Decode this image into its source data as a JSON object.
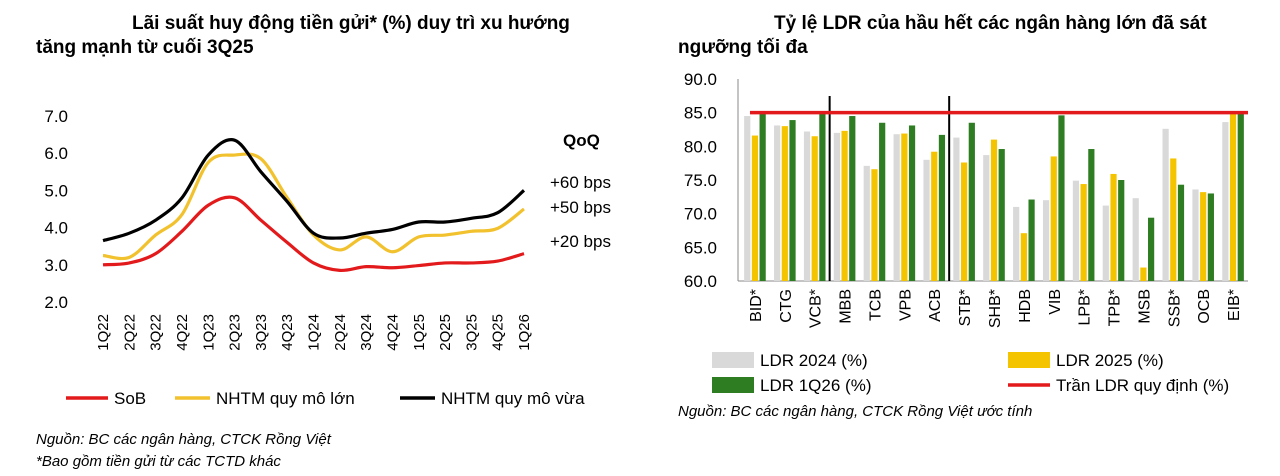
{
  "left": {
    "title_line1": "Lãi suất huy động tiền gửi* (%) duy trì xu hướng",
    "title_line2": "tăng mạnh từ cuối 3Q25",
    "qoq_label": "QoQ",
    "annotations": [
      "+60 bps",
      "+50 bps",
      "+20 bps"
    ],
    "source": "Nguồn: BC các ngân hàng, CTCK Rồng Việt",
    "footnote": "*Bao gồm tiền gửi từ các TCTD khác"
  },
  "right": {
    "title_line1": "Tỷ lệ LDR của hầu hết các ngân hàng lớn đã sát",
    "title_line2": "ngưỡng tối đa",
    "source": "Nguồn: BC các ngân hàng, CTCK Rồng Việt ước tính"
  },
  "chart_data": [
    {
      "type": "line",
      "categories": [
        "1Q22",
        "2Q22",
        "3Q22",
        "4Q22",
        "1Q23",
        "2Q23",
        "3Q23",
        "4Q23",
        "1Q24",
        "2Q24",
        "3Q24",
        "4Q24",
        "1Q25",
        "2Q25",
        "3Q25",
        "4Q25",
        "1Q26"
      ],
      "ylim": [
        2.0,
        7.0
      ],
      "yticks": [
        "2.0",
        "3.0",
        "4.0",
        "5.0",
        "6.0",
        "7.0"
      ],
      "grid": false,
      "legend_position": "bottom",
      "series": [
        {
          "name": "SoB",
          "color": "#e31a1c",
          "values": [
            3.0,
            3.05,
            3.3,
            3.9,
            4.6,
            4.8,
            4.2,
            3.6,
            3.05,
            2.85,
            2.95,
            2.92,
            2.98,
            3.05,
            3.05,
            3.1,
            3.3
          ]
        },
        {
          "name": "NHTM quy mô lớn",
          "color": "#f2c12e",
          "values": [
            3.25,
            3.2,
            3.8,
            4.35,
            5.75,
            5.95,
            5.85,
            4.8,
            3.8,
            3.4,
            3.75,
            3.35,
            3.75,
            3.8,
            3.9,
            3.98,
            4.5
          ]
        },
        {
          "name": "NHTM quy mô vừa",
          "color": "#000000",
          "values": [
            3.65,
            3.85,
            4.2,
            4.8,
            5.95,
            6.35,
            5.5,
            4.7,
            3.85,
            3.72,
            3.85,
            3.95,
            4.15,
            4.15,
            4.25,
            4.4,
            5.0
          ]
        }
      ]
    },
    {
      "type": "bar",
      "categories": [
        "BID*",
        "CTG",
        "VCB*",
        "MBB",
        "TCB",
        "VPB",
        "ACB",
        "STB*",
        "SHB*",
        "HDB",
        "VIB",
        "LPB*",
        "TPB*",
        "MSB",
        "SSB*",
        "OCB",
        "EIB*"
      ],
      "ylim": [
        60.0,
        90.0
      ],
      "yticks": [
        "60.0",
        "65.0",
        "70.0",
        "75.0",
        "80.0",
        "85.0",
        "90.0"
      ],
      "grid": false,
      "legend_position": "bottom",
      "group_separators_after": [
        "VCB*",
        "ACB"
      ],
      "series": [
        {
          "name": "LDR 2024 (%)",
          "color": "#d9d9d9",
          "values": [
            84.5,
            83.1,
            82.2,
            82.0,
            77.1,
            81.8,
            78.0,
            81.3,
            78.7,
            71.0,
            72.0,
            74.9,
            71.2,
            72.3,
            82.6,
            73.6,
            83.6
          ]
        },
        {
          "name": "LDR 2025 (%)",
          "color": "#f5c400",
          "values": [
            81.6,
            83.0,
            81.5,
            82.3,
            76.6,
            81.9,
            79.2,
            77.6,
            81.0,
            67.1,
            78.5,
            74.4,
            75.9,
            62.0,
            78.2,
            73.2,
            84.9
          ]
        },
        {
          "name": "LDR 1Q26 (%)",
          "color": "#2e7d23",
          "values": [
            85.0,
            83.9,
            85.0,
            84.5,
            83.5,
            83.1,
            81.7,
            83.5,
            79.6,
            72.1,
            84.6,
            79.6,
            75.0,
            69.4,
            74.3,
            73.0,
            85.0
          ]
        }
      ],
      "reference_line": {
        "name": "Trần LDR quy định (%)",
        "color": "#e31a1c",
        "value": 85.0
      }
    }
  ]
}
